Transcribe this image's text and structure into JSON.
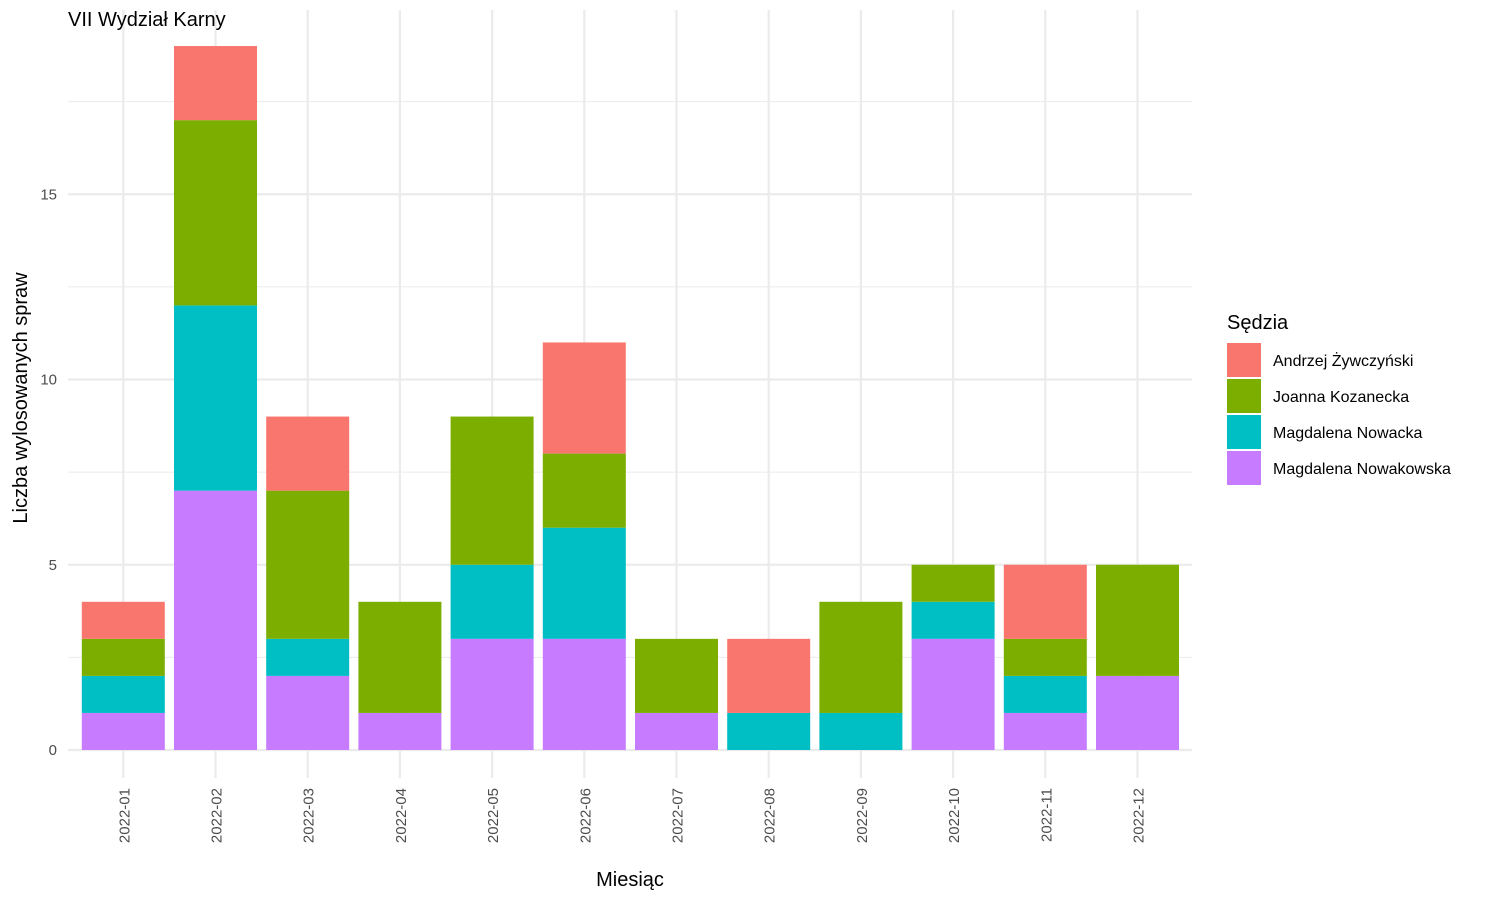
{
  "chart_data": {
    "type": "bar",
    "stacked": true,
    "title": "VII Wydział Karny",
    "xlabel": "Miesiąc",
    "ylabel": "Liczba wylosowanych spraw",
    "ylim": [
      0,
      19
    ],
    "yticks": [
      0,
      5,
      10,
      15
    ],
    "grid": true,
    "legend_title": "Sędzia",
    "legend_position": "right",
    "categories": [
      "2022-01",
      "2022-02",
      "2022-03",
      "2022-04",
      "2022-05",
      "2022-06",
      "2022-07",
      "2022-08",
      "2022-09",
      "2022-10",
      "2022-11",
      "2022-12"
    ],
    "series": [
      {
        "name": "Andrzej Żywczyński",
        "color": "#F8766D",
        "values": [
          1,
          2,
          2,
          0,
          0,
          3,
          0,
          2,
          0,
          0,
          2,
          0
        ]
      },
      {
        "name": "Joanna Kozanecka",
        "color": "#7CAE00",
        "values": [
          1,
          5,
          4,
          3,
          4,
          2,
          2,
          0,
          3,
          1,
          1,
          3
        ]
      },
      {
        "name": "Magdalena Nowacka",
        "color": "#00BFC4",
        "values": [
          1,
          5,
          1,
          0,
          2,
          3,
          0,
          1,
          1,
          1,
          1,
          0
        ]
      },
      {
        "name": "Magdalena Nowakowska",
        "color": "#C77CFF",
        "values": [
          1,
          7,
          2,
          1,
          3,
          3,
          1,
          0,
          0,
          3,
          1,
          2
        ]
      }
    ]
  }
}
